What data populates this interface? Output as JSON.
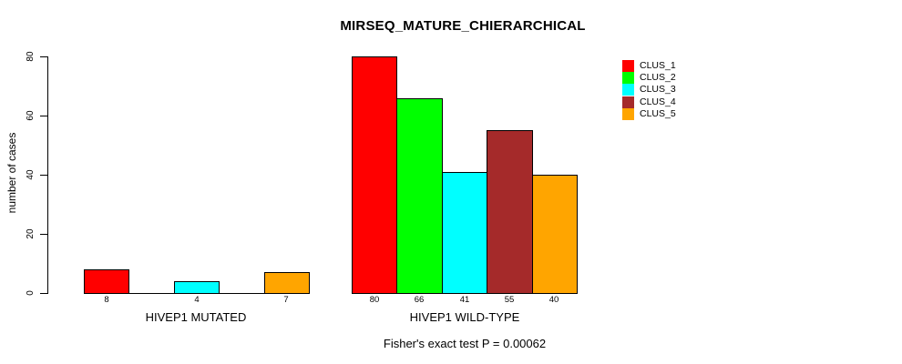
{
  "chart_data": {
    "type": "bar",
    "title": "MIRSEQ_MATURE_CHIERARCHICAL",
    "ylabel": "number of cases",
    "xlabel": "",
    "subtitle": "Fisher's exact test P = 0.00062",
    "ylim": [
      0,
      80
    ],
    "yticks": [
      0,
      20,
      40,
      60,
      80
    ],
    "grid": false,
    "legend_position": "right-outside",
    "background_color": "#ffffff",
    "bar_border_color": "#000000",
    "categories": [
      "HIVEP1 MUTATED",
      "HIVEP1 WILD-TYPE"
    ],
    "series": [
      {
        "name": "CLUS_1",
        "color": "#ff0000",
        "values": [
          8,
          80
        ]
      },
      {
        "name": "CLUS_2",
        "color": "#00ff00",
        "values": [
          0,
          66
        ]
      },
      {
        "name": "CLUS_3",
        "color": "#00ffff",
        "values": [
          4,
          41
        ]
      },
      {
        "name": "CLUS_4",
        "color": "#a52a2a",
        "values": [
          0,
          55
        ]
      },
      {
        "name": "CLUS_5",
        "color": "#ffa500",
        "values": [
          7,
          40
        ]
      }
    ],
    "colors": [
      "#ff0000",
      "#00ff00",
      "#00ffff",
      "#a52a2a",
      "#ffa500"
    ],
    "legend": [
      "CLUS_1",
      "CLUS_2",
      "CLUS_3",
      "CLUS_4",
      "CLUS_5"
    ],
    "groups": [
      {
        "label": "HIVEP1 MUTATED",
        "values": [
          8,
          0,
          4,
          0,
          7
        ],
        "bar_labels": [
          "8",
          "",
          "4",
          "",
          "7"
        ]
      },
      {
        "label": "HIVEP1 WILD-TYPE",
        "values": [
          80,
          66,
          41,
          55,
          40
        ],
        "bar_labels": [
          "80",
          "66",
          "41",
          "55",
          "40"
        ]
      }
    ]
  }
}
